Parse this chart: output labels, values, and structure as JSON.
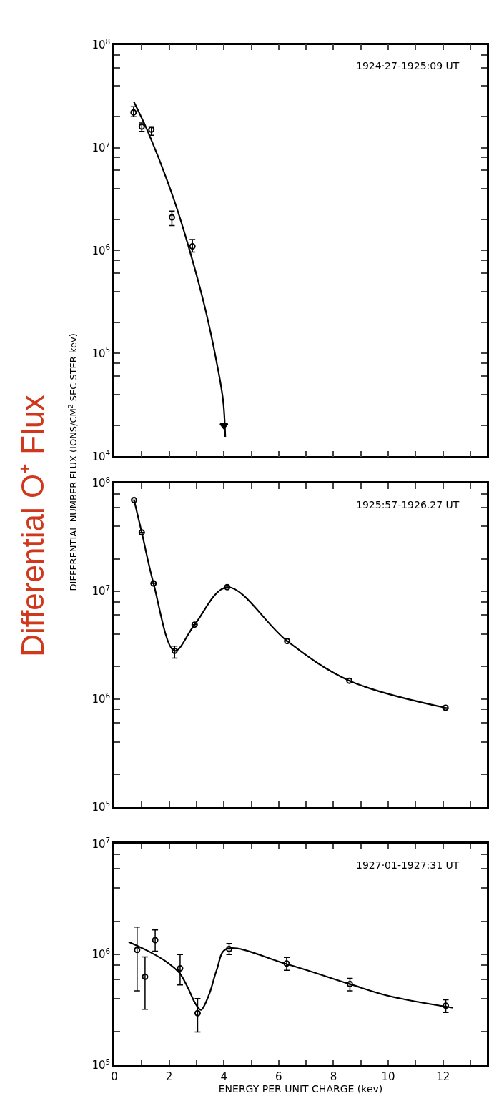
{
  "chart_data": [
    {
      "type": "scatter",
      "annotations": [
        "1924·27-1925:09 UT"
      ],
      "xlim": [
        0,
        13.6
      ],
      "ylim": [
        10000,
        100000000
      ],
      "log": "y",
      "tick_labels": "y",
      "xticks": [
        {
          "value": 0,
          "label": null
        },
        {
          "value": 1,
          "label": null
        },
        {
          "value": 2,
          "label": null
        },
        {
          "value": 3,
          "label": null
        },
        {
          "value": 4,
          "label": null
        },
        {
          "value": 5,
          "label": null
        },
        {
          "value": 6,
          "label": null
        },
        {
          "value": 7,
          "label": null
        },
        {
          "value": 8,
          "label": null
        },
        {
          "value": 9,
          "label": null
        },
        {
          "value": 10,
          "label": null
        },
        {
          "value": 11,
          "label": null
        },
        {
          "value": 12,
          "label": null
        },
        {
          "value": 13,
          "label": null
        }
      ],
      "yticks": [
        {
          "value": 10000,
          "label": "10$^{4}$"
        },
        {
          "value": 20000,
          "label": null
        },
        {
          "value": 40000,
          "label": null
        },
        {
          "value": 60000,
          "label": null
        },
        {
          "value": 80000,
          "label": null
        },
        {
          "value": 100000,
          "label": "10$^{5}$"
        },
        {
          "value": 200000,
          "label": null
        },
        {
          "value": 400000,
          "label": null
        },
        {
          "value": 600000,
          "label": null
        },
        {
          "value": 800000,
          "label": null
        },
        {
          "value": 1000000,
          "label": "10$^{6}$"
        },
        {
          "value": 2000000,
          "label": null
        },
        {
          "value": 4000000,
          "label": null
        },
        {
          "value": 6000000,
          "label": null
        },
        {
          "value": 8000000,
          "label": null
        },
        {
          "value": 10000000,
          "label": "10$^{7}$"
        },
        {
          "value": 20000000,
          "label": null
        },
        {
          "value": 40000000,
          "label": null
        },
        {
          "value": 60000000,
          "label": null
        },
        {
          "value": 80000000,
          "label": null
        },
        {
          "value": 100000000,
          "label": "10$^{8}$"
        }
      ],
      "series": [
        {
          "marker": "circle",
          "color": "#000000",
          "x": [
            0.7,
            1.0,
            1.35,
            2.1,
            2.85
          ],
          "values": [
            22000000,
            16000000,
            15000000,
            2100000,
            1100000
          ],
          "errors": [
            [
              20000000,
              25000000
            ],
            [
              14400000,
              17400000
            ],
            [
              13200000,
              16000000
            ],
            [
              1750000,
              2420000
            ],
            [
              970000,
              1280000
            ]
          ]
        },
        {
          "marker": "triangle",
          "color": "#000000",
          "x": [
            4.0
          ],
          "values": [
            20000
          ]
        },
        {
          "type": "line",
          "marker": "none",
          "line_style": "solid",
          "color": "#000000",
          "x": [
            0.71,
            1.26,
            2.18,
            2.78,
            3.32,
            3.75,
            3.97,
            4.05
          ],
          "values": [
            28000000,
            13600000,
            3100000,
            940000,
            270000,
            78000,
            35000,
            15500
          ]
        }
      ]
    },
    {
      "type": "line",
      "ylabel": "DIFFERENTIAL NUMBER FLUX (IONS/CM$^{2}$ SEC STER kev)",
      "annotations": [
        "1925:57-1926.27 UT",
        "Differential O⁺ Flux"
      ],
      "xlim": [
        0,
        13.6
      ],
      "ylim": [
        100000,
        100000000
      ],
      "log": "y",
      "tick_labels": "y",
      "xticks": [
        {
          "value": 0,
          "label": null
        },
        {
          "value": 1,
          "label": null
        },
        {
          "value": 2,
          "label": null
        },
        {
          "value": 3,
          "label": null
        },
        {
          "value": 4,
          "label": null
        },
        {
          "value": 5,
          "label": null
        },
        {
          "value": 6,
          "label": null
        },
        {
          "value": 7,
          "label": null
        },
        {
          "value": 8,
          "label": null
        },
        {
          "value": 9,
          "label": null
        },
        {
          "value": 10,
          "label": null
        },
        {
          "value": 11,
          "label": null
        },
        {
          "value": 12,
          "label": null
        },
        {
          "value": 13,
          "label": null
        }
      ],
      "yticks": [
        {
          "value": 100000,
          "label": "10$^{5}$"
        },
        {
          "value": 200000,
          "label": null
        },
        {
          "value": 400000,
          "label": null
        },
        {
          "value": 600000,
          "label": null
        },
        {
          "value": 800000,
          "label": null
        },
        {
          "value": 1000000,
          "label": "10$^{6}$"
        },
        {
          "value": 2000000,
          "label": null
        },
        {
          "value": 4000000,
          "label": null
        },
        {
          "value": 6000000,
          "label": null
        },
        {
          "value": 8000000,
          "label": null
        },
        {
          "value": 10000000,
          "label": "10$^{7}$"
        },
        {
          "value": 20000000,
          "label": null
        },
        {
          "value": 40000000,
          "label": null
        },
        {
          "value": 60000000,
          "label": null
        },
        {
          "value": 80000000,
          "label": null
        },
        {
          "value": 100000000,
          "label": "10$^{8}$"
        }
      ],
      "series": [
        {
          "marker": "circle",
          "line_style": "solid",
          "color": "#000000",
          "x": [
            0.72,
            1.0,
            1.43,
            2.2,
            2.93,
            4.12,
            6.31,
            8.58,
            12.09
          ],
          "values": [
            70000000,
            35000000,
            11800000,
            2800000,
            4900000,
            10900000,
            3450000,
            1480000,
            830000
          ],
          "errors": [
            null,
            null,
            null,
            [
              2400000,
              3100000
            ],
            null,
            null,
            null,
            null,
            null
          ]
        }
      ]
    },
    {
      "type": "scatter",
      "xlabel": "ENERGY PER UNIT CHARGE (kev)",
      "annotations": [
        "1927·01-1927:31 UT"
      ],
      "xlim": [
        0,
        13.6
      ],
      "ylim": [
        100000,
        10000000
      ],
      "log": "y",
      "xticks": [
        0,
        {
          "value": 1,
          "label": null
        },
        2,
        {
          "value": 3,
          "label": null
        },
        4,
        {
          "value": 5,
          "label": null
        },
        6,
        {
          "value": 7,
          "label": null
        },
        8,
        {
          "value": 9,
          "label": null
        },
        10,
        {
          "value": 11,
          "label": null
        },
        12,
        {
          "value": 13,
          "label": null
        }
      ],
      "yticks": [
        {
          "value": 100000,
          "label": "10$^{5}$"
        },
        {
          "value": 200000,
          "label": null
        },
        {
          "value": 400000,
          "label": null
        },
        {
          "value": 600000,
          "label": null
        },
        {
          "value": 800000,
          "label": null
        },
        {
          "value": 1000000,
          "label": "10$^{6}$"
        },
        {
          "value": 2000000,
          "label": null
        },
        {
          "value": 4000000,
          "label": null
        },
        {
          "value": 6000000,
          "label": null
        },
        {
          "value": 8000000,
          "label": null
        },
        {
          "value": 10000000,
          "label": "10$^{7}$"
        }
      ],
      "series": [
        {
          "marker": "circle",
          "color": "#000000",
          "x": [
            0.83,
            1.12,
            1.49,
            2.4,
            3.04,
            4.19,
            6.29,
            8.6,
            12.1
          ],
          "values": [
            1100000,
            630000,
            1350000,
            750000,
            295000,
            1120000,
            830000,
            540000,
            345000
          ],
          "errors": [
            [
              470000,
              1770000
            ],
            [
              320000,
              950000
            ],
            [
              1070000,
              1670000
            ],
            [
              530000,
              1000000
            ],
            [
              200000,
              400000
            ],
            [
              1000000,
              1260000
            ],
            [
              720000,
              940000
            ],
            [
              470000,
              610000
            ],
            [
              300000,
              390000
            ]
          ]
        },
        {
          "type": "line",
          "marker": "none",
          "line_style": "solid",
          "color": "#000000",
          "x": [
            0.52,
            1.31,
            1.9,
            2.38,
            2.67,
            2.96,
            3.16,
            3.45,
            3.74,
            4.08,
            6.29,
            8.6,
            10.06,
            12.37
          ],
          "values": [
            1300000,
            1050000,
            860000,
            680000,
            510000,
            360000,
            316000,
            430000,
            730000,
            1120000,
            820000,
            540000,
            420000,
            330000
          ]
        }
      ]
    }
  ]
}
